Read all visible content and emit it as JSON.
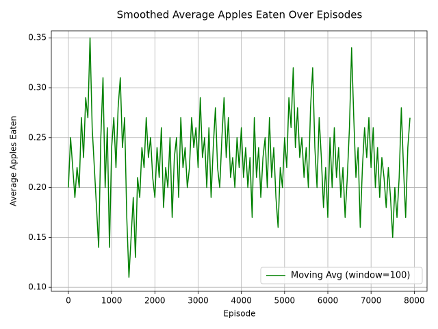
{
  "chart_data": {
    "type": "line",
    "title": "Smoothed Average Apples Eaten Over Episodes",
    "x_label": "Episode",
    "y_label": "Average Apples Eaten",
    "x": [
      0,
      50,
      100,
      150,
      200,
      250,
      300,
      350,
      400,
      450,
      500,
      550,
      600,
      650,
      700,
      750,
      800,
      850,
      900,
      950,
      1000,
      1050,
      1100,
      1150,
      1200,
      1250,
      1300,
      1350,
      1400,
      1450,
      1500,
      1550,
      1600,
      1650,
      1700,
      1750,
      1800,
      1850,
      1900,
      1950,
      2000,
      2050,
      2100,
      2150,
      2200,
      2250,
      2300,
      2350,
      2400,
      2450,
      2500,
      2550,
      2600,
      2650,
      2700,
      2750,
      2800,
      2850,
      2900,
      2950,
      3000,
      3050,
      3100,
      3150,
      3200,
      3250,
      3300,
      3350,
      3400,
      3450,
      3500,
      3550,
      3600,
      3650,
      3700,
      3750,
      3800,
      3850,
      3900,
      3950,
      4000,
      4050,
      4100,
      4150,
      4200,
      4250,
      4300,
      4350,
      4400,
      4450,
      4500,
      4550,
      4600,
      4650,
      4700,
      4750,
      4800,
      4850,
      4900,
      4950,
      5000,
      5050,
      5100,
      5150,
      5200,
      5250,
      5300,
      5350,
      5400,
      5450,
      5500,
      5550,
      5600,
      5650,
      5700,
      5750,
      5800,
      5850,
      5900,
      5950,
      6000,
      6050,
      6100,
      6150,
      6200,
      6250,
      6300,
      6350,
      6400,
      6450,
      6500,
      6550,
      6600,
      6650,
      6700,
      6750,
      6800,
      6850,
      6900,
      6950,
      7000,
      7050,
      7100,
      7150,
      7200,
      7250,
      7300,
      7350,
      7400,
      7450,
      7500,
      7550,
      7600,
      7650,
      7700,
      7750,
      7800,
      7850,
      7900
    ],
    "series": [
      {
        "name": "Moving Avg (window=100)",
        "color": "#008000",
        "values": [
          0.2,
          0.25,
          0.22,
          0.19,
          0.22,
          0.2,
          0.27,
          0.23,
          0.29,
          0.27,
          0.35,
          0.26,
          0.22,
          0.18,
          0.14,
          0.25,
          0.31,
          0.2,
          0.26,
          0.14,
          0.24,
          0.27,
          0.22,
          0.28,
          0.31,
          0.24,
          0.27,
          0.17,
          0.11,
          0.15,
          0.19,
          0.13,
          0.21,
          0.19,
          0.24,
          0.22,
          0.27,
          0.23,
          0.25,
          0.21,
          0.19,
          0.24,
          0.21,
          0.26,
          0.18,
          0.22,
          0.2,
          0.25,
          0.17,
          0.23,
          0.25,
          0.19,
          0.27,
          0.22,
          0.24,
          0.2,
          0.22,
          0.27,
          0.24,
          0.26,
          0.22,
          0.29,
          0.23,
          0.25,
          0.2,
          0.26,
          0.19,
          0.24,
          0.28,
          0.22,
          0.2,
          0.25,
          0.29,
          0.23,
          0.27,
          0.21,
          0.23,
          0.2,
          0.25,
          0.22,
          0.26,
          0.21,
          0.24,
          0.2,
          0.23,
          0.17,
          0.27,
          0.21,
          0.24,
          0.19,
          0.23,
          0.25,
          0.2,
          0.27,
          0.21,
          0.24,
          0.19,
          0.16,
          0.22,
          0.2,
          0.25,
          0.22,
          0.29,
          0.26,
          0.32,
          0.24,
          0.28,
          0.23,
          0.25,
          0.21,
          0.24,
          0.2,
          0.28,
          0.32,
          0.24,
          0.2,
          0.27,
          0.23,
          0.18,
          0.22,
          0.17,
          0.25,
          0.2,
          0.26,
          0.21,
          0.24,
          0.19,
          0.22,
          0.17,
          0.21,
          0.26,
          0.34,
          0.27,
          0.21,
          0.24,
          0.16,
          0.22,
          0.26,
          0.23,
          0.27,
          0.22,
          0.26,
          0.2,
          0.24,
          0.19,
          0.23,
          0.21,
          0.18,
          0.22,
          0.19,
          0.15,
          0.2,
          0.17,
          0.21,
          0.28,
          0.22,
          0.17,
          0.24,
          0.27
        ]
      }
    ],
    "xlim": [
      -395,
      8295
    ],
    "ylim": [
      0.096,
      0.357
    ],
    "xticks": [
      0,
      1000,
      2000,
      3000,
      4000,
      5000,
      6000,
      7000,
      8000
    ],
    "yticks": [
      {
        "value": 0.1,
        "label": "0.10"
      },
      0.15,
      {
        "value": 0.2,
        "label": "0.20"
      },
      0.25,
      {
        "value": 0.3,
        "label": "0.30"
      },
      0.35
    ],
    "grid": true,
    "legend": "lower right"
  }
}
